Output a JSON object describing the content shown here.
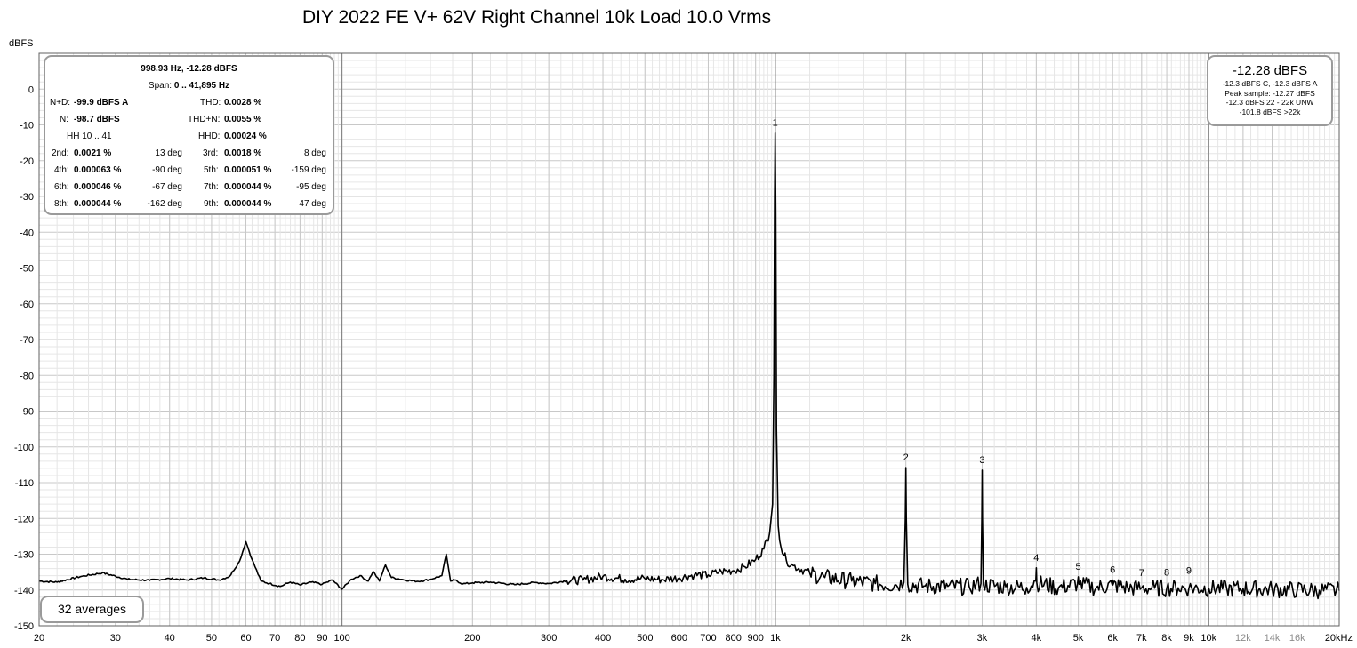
{
  "title": "DIY 2022 FE V+ 62V Right Channel 10k Load 10.0 Vrms",
  "y_unit": "dBFS",
  "stats": {
    "peak": "998.93 Hz, -12.28 dBFS",
    "span_label": "Span:",
    "span_value": "0 .. 41,895 Hz",
    "nd_label": "N+D:",
    "nd_value": "-99.9 dBFS A",
    "thd_label": "THD:",
    "thd_value": "0.0028 %",
    "n_label": "N:",
    "n_value": "-98.7 dBFS",
    "thdn_label": "THD+N:",
    "thdn_value": "0.0055 %",
    "hh_label": "HH 10 .. 41",
    "hhd_label": "HHD:",
    "hhd_value": "0.00024 %",
    "harmonics": [
      {
        "label": "2nd:",
        "value": "0.0021 %",
        "phase": "13 deg"
      },
      {
        "label": "3rd:",
        "value": "0.0018 %",
        "phase": "8 deg"
      },
      {
        "label": "4th:",
        "value": "0.000063 %",
        "phase": "-90 deg"
      },
      {
        "label": "5th:",
        "value": "0.000051 %",
        "phase": "-159 deg"
      },
      {
        "label": "6th:",
        "value": "0.000046 %",
        "phase": "-67 deg"
      },
      {
        "label": "7th:",
        "value": "0.000044 %",
        "phase": "-95 deg"
      },
      {
        "label": "8th:",
        "value": "0.000044 %",
        "phase": "-162 deg"
      },
      {
        "label": "9th:",
        "value": "0.000044 %",
        "phase": "47 deg"
      }
    ]
  },
  "level": {
    "main": "-12.28 dBFS",
    "line1": "-12.3 dBFS C, -12.3 dBFS A",
    "line2": "Peak sample: -12.27 dBFS",
    "line3": "-12.3 dBFS 22 - 22k UNW",
    "line4": "-101.8 dBFS >22k"
  },
  "averages": "32 averages",
  "chart_data": {
    "type": "line",
    "title": "DIY 2022 FE V+ 62V Right Channel 10k Load 10.0 Vrms",
    "xlabel": "",
    "ylabel": "dBFS",
    "x_scale": "log",
    "xlim": [
      20,
      20000
    ],
    "ylim": [
      -150,
      10
    ],
    "grid": true,
    "y_ticks": [
      "0",
      "-10",
      "-20",
      "-30",
      "-40",
      "-50",
      "-60",
      "-70",
      "-80",
      "-90",
      "-100",
      "-110",
      "-120",
      "-130",
      "-140",
      "-150"
    ],
    "y_tick_values": [
      0,
      -10,
      -20,
      -30,
      -40,
      -50,
      -60,
      -70,
      -80,
      -90,
      -100,
      -110,
      -120,
      -130,
      -140,
      -150
    ],
    "x_ticks": [
      {
        "label": "20",
        "f": 20
      },
      {
        "label": "30",
        "f": 30
      },
      {
        "label": "40",
        "f": 40
      },
      {
        "label": "50",
        "f": 50
      },
      {
        "label": "60",
        "f": 60
      },
      {
        "label": "70",
        "f": 70
      },
      {
        "label": "80",
        "f": 80
      },
      {
        "label": "90",
        "f": 90
      },
      {
        "label": "100",
        "f": 100
      },
      {
        "label": "200",
        "f": 200
      },
      {
        "label": "300",
        "f": 300
      },
      {
        "label": "400",
        "f": 400
      },
      {
        "label": "500",
        "f": 500
      },
      {
        "label": "600",
        "f": 600
      },
      {
        "label": "700",
        "f": 700
      },
      {
        "label": "800",
        "f": 800
      },
      {
        "label": "900",
        "f": 900
      },
      {
        "label": "1k",
        "f": 1000
      },
      {
        "label": "2k",
        "f": 2000
      },
      {
        "label": "3k",
        "f": 3000
      },
      {
        "label": "4k",
        "f": 4000
      },
      {
        "label": "5k",
        "f": 5000
      },
      {
        "label": "6k",
        "f": 6000
      },
      {
        "label": "7k",
        "f": 7000
      },
      {
        "label": "8k",
        "f": 8000
      },
      {
        "label": "9k",
        "f": 9000
      },
      {
        "label": "10k",
        "f": 10000
      },
      {
        "label": "12k",
        "f": 12000,
        "muted": true
      },
      {
        "label": "14k",
        "f": 14000,
        "muted": true
      },
      {
        "label": "16k",
        "f": 16000,
        "muted": true
      },
      {
        "label": "20kHz",
        "f": 20000
      }
    ],
    "series": [
      {
        "color": "#000000",
        "x": [
          20,
          22,
          25,
          28,
          32,
          36,
          40,
          44,
          48,
          52,
          55,
          58,
          60,
          62,
          65,
          68,
          72,
          76,
          80,
          85,
          90,
          95,
          100,
          105,
          110,
          115,
          118,
          122,
          126,
          130,
          140,
          150,
          160,
          170,
          174,
          178,
          182,
          190,
          200,
          220,
          250,
          280,
          300,
          330,
          360,
          400,
          450,
          500,
          550,
          600,
          650,
          700,
          750,
          800,
          850,
          900,
          940,
          970,
          985,
          992,
          996,
          998.93,
          1002,
          1006,
          1015,
          1030,
          1060,
          1100,
          1200,
          1300,
          1500,
          1700,
          1900,
          1980,
          1995,
          2000,
          2005,
          2020,
          2200,
          2500,
          2800,
          2980,
          2995,
          3000,
          3005,
          3020,
          3400,
          3800,
          3990,
          4000,
          4010,
          4500,
          4980,
          5000,
          5020,
          5500,
          5990,
          6000,
          6010,
          6500,
          7000,
          7500,
          8000,
          8500,
          9000,
          10000,
          11000,
          12000,
          14000,
          16000,
          18000,
          20000
        ],
        "y": [
          -137.5,
          -137.8,
          -136.2,
          -135.2,
          -137.0,
          -137.3,
          -136.8,
          -137.2,
          -136.6,
          -137.2,
          -136.2,
          -132.0,
          -126.5,
          -131.5,
          -137.5,
          -138.2,
          -139.0,
          -137.8,
          -138.6,
          -137.8,
          -138.4,
          -137.2,
          -139.8,
          -137.0,
          -136.0,
          -137.5,
          -134.8,
          -137.5,
          -133.0,
          -136.5,
          -137.2,
          -137.6,
          -137.0,
          -136.0,
          -130.0,
          -137.5,
          -137.2,
          -138.3,
          -138.0,
          -137.8,
          -138.5,
          -137.9,
          -138.2,
          -137.4,
          -137.2,
          -136.2,
          -137.0,
          -136.8,
          -137.1,
          -136.6,
          -135.8,
          -135.8,
          -134.8,
          -134.6,
          -133.5,
          -131.5,
          -128.5,
          -124.0,
          -116.0,
          -80.0,
          -30.0,
          -12.28,
          -35.0,
          -95.0,
          -122.0,
          -128.0,
          -131.8,
          -133.2,
          -135.3,
          -136.5,
          -137.5,
          -138.2,
          -138.6,
          -137.8,
          -120.0,
          -105.8,
          -120.0,
          -138.4,
          -138.9,
          -139.0,
          -139.1,
          -138.2,
          -120.0,
          -106.5,
          -120.0,
          -138.6,
          -139.1,
          -139.3,
          -137.5,
          -133.8,
          -138.0,
          -139.4,
          -138.2,
          -136.3,
          -138.4,
          -139.4,
          -138.6,
          -137.2,
          -138.6,
          -139.4,
          -139.4,
          -139.5,
          -139.5,
          -139.4,
          -139.5,
          -139.5,
          -139.6,
          -139.6,
          -139.8,
          -140.0,
          -140.1,
          -140.2
        ]
      }
    ],
    "annotations": [
      {
        "text": "1",
        "x": 998.93,
        "y": -12.28
      },
      {
        "text": "2",
        "x": 2000,
        "y": -105.8
      },
      {
        "text": "3",
        "x": 3000,
        "y": -106.5
      },
      {
        "text": "4",
        "x": 4000,
        "y": -133.8
      },
      {
        "text": "5",
        "x": 5000,
        "y": -136.3
      },
      {
        "text": "6",
        "x": 6000,
        "y": -137.2
      },
      {
        "text": "7",
        "x": 7000,
        "y": -138.1
      },
      {
        "text": "8",
        "x": 8000,
        "y": -138.0
      },
      {
        "text": "9",
        "x": 9000,
        "y": -137.5
      }
    ]
  }
}
